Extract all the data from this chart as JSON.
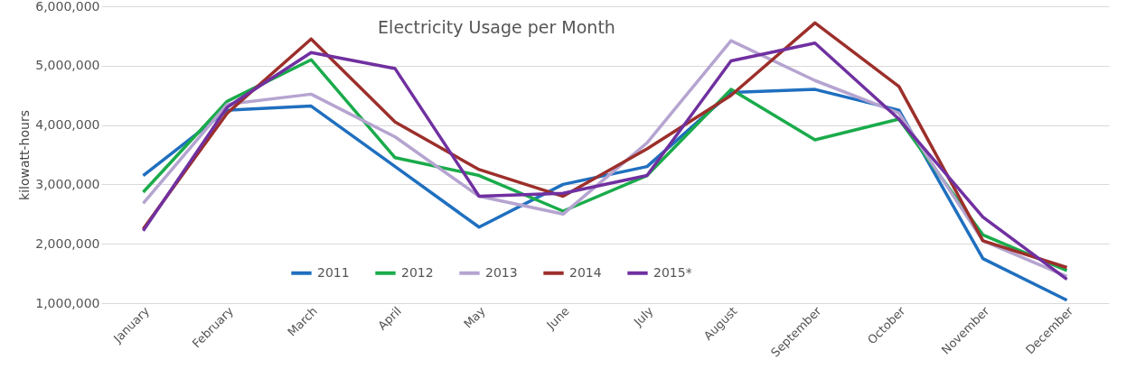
{
  "chart_data": {
    "type": "line",
    "title": "Electricity Usage per Month",
    "ylabel": "kilowatt-hours",
    "categories": [
      "January",
      "February",
      "March",
      "April",
      "May",
      "June",
      "July",
      "August",
      "September",
      "October",
      "November",
      "December"
    ],
    "series": [
      {
        "name": "2011",
        "color": "#1f6fbf",
        "values": [
          3150000,
          4250000,
          4320000,
          3300000,
          2280000,
          3000000,
          3300000,
          4550000,
          4600000,
          4250000,
          1750000,
          1050000
        ]
      },
      {
        "name": "2012",
        "color": "#1aab4b",
        "values": [
          2870000,
          4400000,
          5100000,
          3450000,
          3150000,
          2550000,
          3150000,
          4600000,
          3750000,
          4100000,
          2150000,
          1550000
        ]
      },
      {
        "name": "2013",
        "color": "#b5a4d0",
        "values": [
          2680000,
          4350000,
          4520000,
          3800000,
          2800000,
          2500000,
          3700000,
          5420000,
          4750000,
          4200000,
          2050000,
          1450000
        ]
      },
      {
        "name": "2014",
        "color": "#9c2f2b",
        "values": [
          2250000,
          4200000,
          5450000,
          4050000,
          3250000,
          2800000,
          3600000,
          4500000,
          5720000,
          4650000,
          2050000,
          1600000
        ]
      },
      {
        "name": "2015*",
        "color": "#7030a0",
        "values": [
          2220000,
          4300000,
          5220000,
          4950000,
          2800000,
          2850000,
          3150000,
          5080000,
          5380000,
          4100000,
          2450000,
          1400000
        ]
      }
    ],
    "ylim": [
      1000000,
      6000000
    ],
    "yticks": [
      {
        "value": 1000000,
        "label": "1,000,000"
      },
      {
        "value": 2000000,
        "label": "2,000,000"
      },
      {
        "value": 3000000,
        "label": "3,000,000"
      },
      {
        "value": 4000000,
        "label": "4,000,000"
      },
      {
        "value": 5000000,
        "label": "5,000,000"
      },
      {
        "value": 6000000,
        "label": "6,000,000"
      }
    ],
    "grid": "y",
    "legend": "bottom",
    "marker": "none",
    "line_style": "solid"
  }
}
